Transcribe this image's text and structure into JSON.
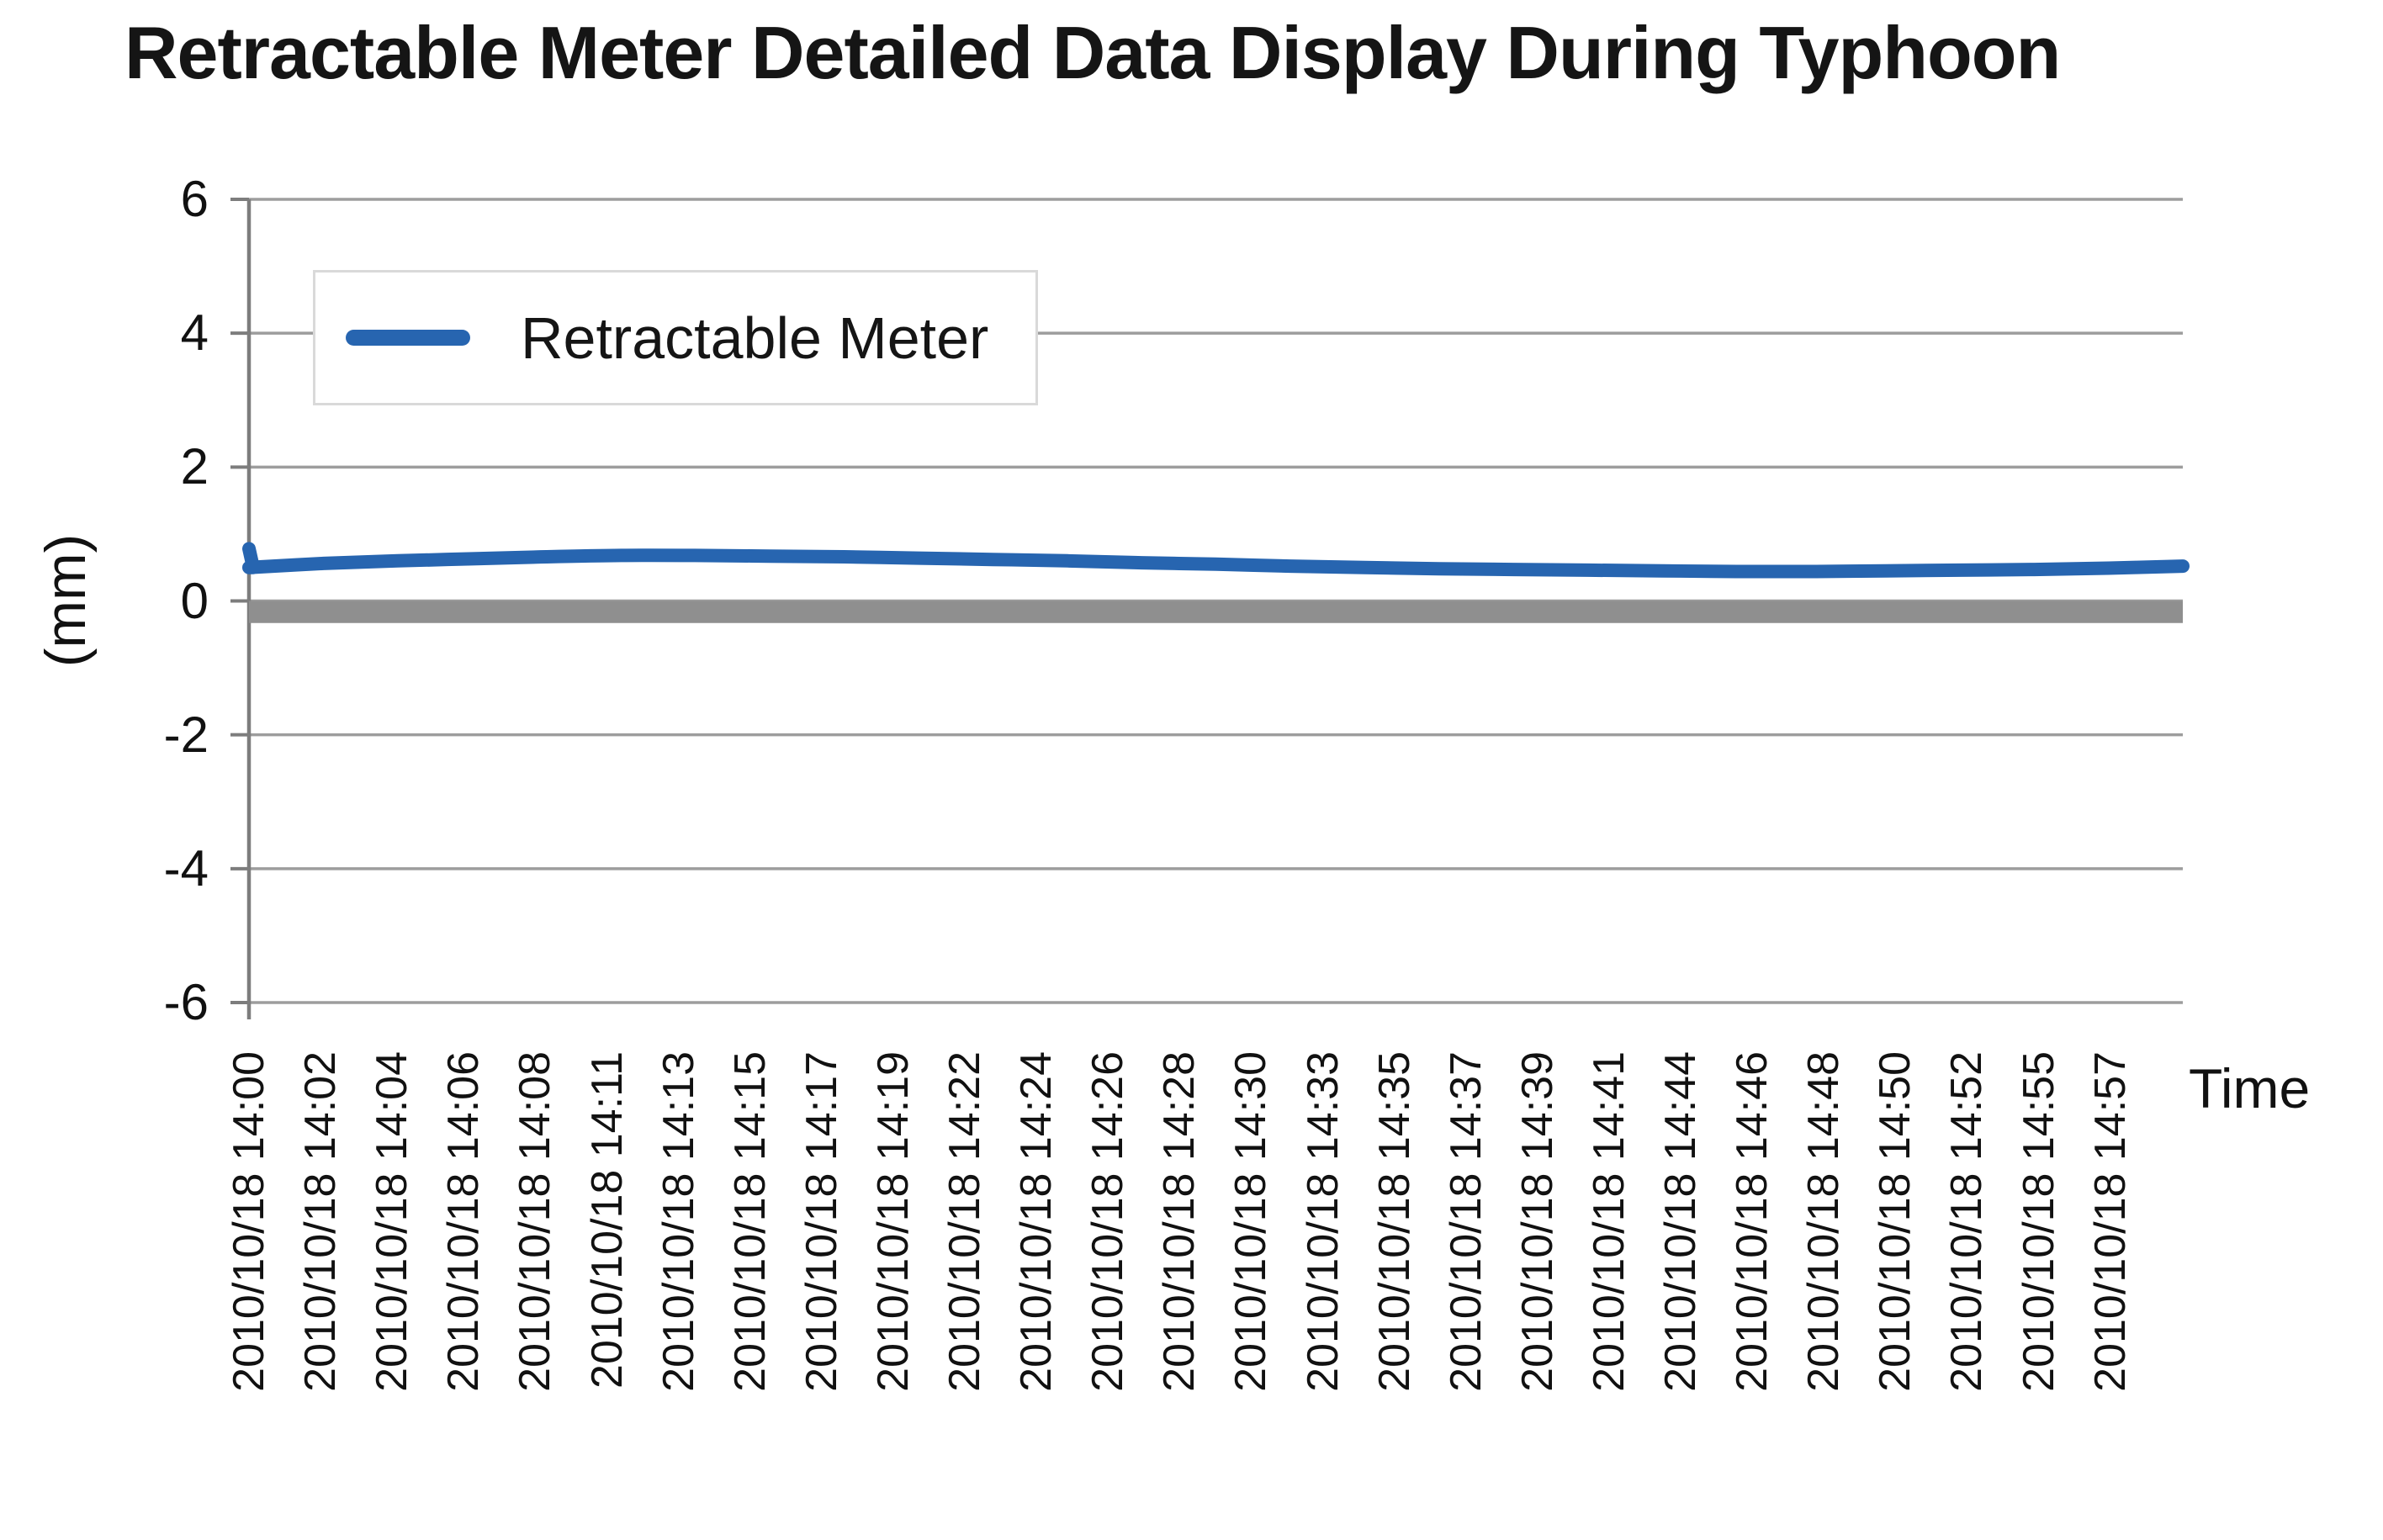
{
  "colors": {
    "series_blue": "#2765b0",
    "zero_band_gray": "#8f8f8f",
    "gridline": "#9d9d9d",
    "axis": "#7d7d7d",
    "legend_border": "#d9d9d9",
    "text": "#151515",
    "background": "#ffffff"
  },
  "chart_data": {
    "type": "line",
    "title": "Retractable Meter Detailed Data Display During Typhoon",
    "ylabel": "(mm)",
    "xlabel": "Time",
    "ylim": [
      -6,
      6
    ],
    "y_ticks": [
      6,
      4,
      2,
      0,
      -2,
      -4,
      -6
    ],
    "grid": true,
    "legend_position": "top-left-inside",
    "categories": [
      "2010/10/18 14:00",
      "2010/10/18 14:02",
      "2010/10/18 14:04",
      "2010/10/18 14:06",
      "2010/10/18 14:08",
      "2010/10/18 14:11",
      "2010/10/18 14:13",
      "2010/10/18 14:15",
      "2010/10/18 14:17",
      "2010/10/18 14:19",
      "2010/10/18 14:22",
      "2010/10/18 14:24",
      "2010/10/18 14:26",
      "2010/10/18 14:28",
      "2010/10/18 14:30",
      "2010/10/18 14:33",
      "2010/10/18 14:35",
      "2010/10/18 14:37",
      "2010/10/18 14:39",
      "2010/10/18 14:41",
      "2010/10/18 14:44",
      "2010/10/18 14:46",
      "2010/10/18 14:48",
      "2010/10/18 14:50",
      "2010/10/18 14:52",
      "2010/10/18 14:55",
      "2010/10/18 14:57"
    ],
    "series": [
      {
        "name": "Retractable Meter",
        "color": "#2765b0",
        "start_spike_value": 0.78,
        "values": [
          0.5,
          0.56,
          0.6,
          0.63,
          0.66,
          0.68,
          0.68,
          0.67,
          0.66,
          0.64,
          0.62,
          0.6,
          0.57,
          0.55,
          0.52,
          0.5,
          0.48,
          0.47,
          0.46,
          0.45,
          0.44,
          0.44,
          0.45,
          0.46,
          0.47,
          0.49,
          0.52
        ]
      }
    ],
    "baseline_band": {
      "from": 0,
      "to": -0.33,
      "color": "#8f8f8f"
    }
  }
}
